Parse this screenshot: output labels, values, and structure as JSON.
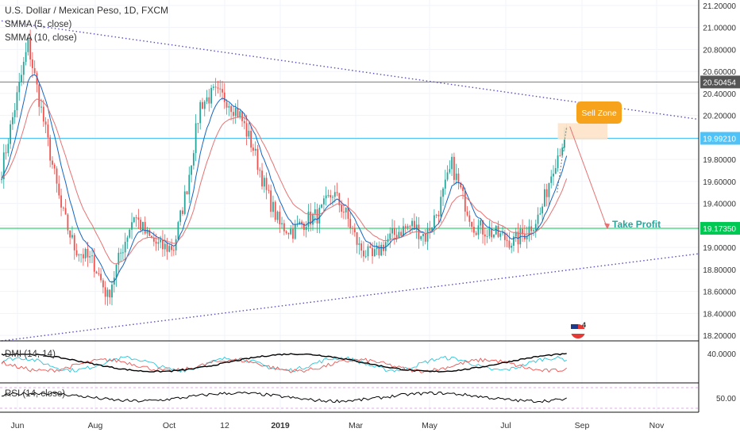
{
  "header": {
    "title": "U.S. Dollar / Mexican Peso, 1D, FXCM",
    "indicators": [
      "SMMA (5, close)",
      "SMMA (10, close)"
    ]
  },
  "panes": {
    "dmi_label": "DMI (14, 14)",
    "rsi_label": "RSI (14, close)"
  },
  "colors": {
    "up": "#26a69a",
    "down": "#ef5350",
    "smma5": "#1565c0",
    "smma10": "#e57373",
    "trend": "#5c4fbf",
    "support": "#00c853",
    "resist": "#4fc3f7",
    "sell": "#f7a21b",
    "tp_text": "#26a69a",
    "arrow": "#e57373",
    "dmi_plus": "#26c6da",
    "adx": "#000000"
  },
  "annotations": {
    "sell_zone": "Sell Zone",
    "take_profit": "Take Profit",
    "event_count": "4"
  },
  "chart_data": {
    "type": "candlestick",
    "title": "U.S. Dollar / Mexican Peso, 1D, FXCM",
    "series_names": [
      "SMMA (5, close)",
      "SMMA (10, close)"
    ],
    "x_ticks": [
      "Jun",
      "Aug",
      "Oct",
      "12",
      "2019",
      "Mar",
      "May",
      "Jul",
      "Sep",
      "Nov"
    ],
    "y_ticks": [
      "21.20000",
      "21.00000",
      "20.80000",
      "20.60000",
      "20.40000",
      "20.20000",
      "20.00000",
      "19.80000",
      "19.60000",
      "19.40000",
      "19.20000",
      "19.00000",
      "18.80000",
      "18.60000",
      "18.40000",
      "18.20000"
    ],
    "ylim": [
      18.15,
      21.25
    ],
    "price_levels": [
      {
        "label": "20.50454",
        "value": 20.50454,
        "style": "gray"
      },
      {
        "label": "19.99210",
        "value": 19.9921,
        "style": "cyan"
      },
      {
        "label": "19.17350",
        "value": 19.1735,
        "style": "green"
      }
    ],
    "anchors": [
      {
        "i": 0,
        "v": 19.7
      },
      {
        "i": 12,
        "v": 20.85
      },
      {
        "i": 20,
        "v": 20.05
      },
      {
        "i": 27,
        "v": 19.35
      },
      {
        "i": 33,
        "v": 19.0
      },
      {
        "i": 42,
        "v": 18.85
      },
      {
        "i": 48,
        "v": 18.55
      },
      {
        "i": 54,
        "v": 18.95
      },
      {
        "i": 60,
        "v": 19.3
      },
      {
        "i": 66,
        "v": 19.1
      },
      {
        "i": 72,
        "v": 19.0
      },
      {
        "i": 78,
        "v": 19.0
      },
      {
        "i": 84,
        "v": 19.55
      },
      {
        "i": 90,
        "v": 20.3
      },
      {
        "i": 96,
        "v": 20.4
      },
      {
        "i": 102,
        "v": 20.35
      },
      {
        "i": 108,
        "v": 20.2
      },
      {
        "i": 114,
        "v": 19.9
      },
      {
        "i": 120,
        "v": 19.5
      },
      {
        "i": 126,
        "v": 19.2
      },
      {
        "i": 132,
        "v": 19.15
      },
      {
        "i": 138,
        "v": 19.25
      },
      {
        "i": 144,
        "v": 19.3
      },
      {
        "i": 150,
        "v": 19.5
      },
      {
        "i": 156,
        "v": 19.3
      },
      {
        "i": 162,
        "v": 19.0
      },
      {
        "i": 168,
        "v": 18.9
      },
      {
        "i": 174,
        "v": 19.05
      },
      {
        "i": 180,
        "v": 19.15
      },
      {
        "i": 186,
        "v": 19.2
      },
      {
        "i": 192,
        "v": 19.1
      },
      {
        "i": 198,
        "v": 19.35
      },
      {
        "i": 204,
        "v": 19.75
      },
      {
        "i": 209,
        "v": 19.45
      },
      {
        "i": 214,
        "v": 19.2
      },
      {
        "i": 220,
        "v": 19.15
      },
      {
        "i": 226,
        "v": 19.1
      },
      {
        "i": 232,
        "v": 19.05
      },
      {
        "i": 238,
        "v": 19.15
      },
      {
        "i": 244,
        "v": 19.3
      },
      {
        "i": 250,
        "v": 19.75
      },
      {
        "i": 256,
        "v": 20.05
      }
    ],
    "trendlines": [
      {
        "name": "resistance",
        "from": [
          "2018-05-21",
          21.06
        ],
        "to": [
          "2019-11-30",
          19.93
        ]
      },
      {
        "name": "support",
        "from": [
          "2018-05-21",
          18.15
        ],
        "to": [
          "2019-11-30",
          19.15
        ]
      }
    ],
    "sell_zone": {
      "low": 19.98,
      "high": 20.13
    },
    "projection": {
      "from": 20.1,
      "to": 19.17
    },
    "dmi": {
      "label": "DMI (14, 14)",
      "value_label": "40.0000",
      "value": 40
    },
    "rsi": {
      "label": "RSI (14, close)",
      "value_label": "50.00",
      "value": 50
    }
  }
}
